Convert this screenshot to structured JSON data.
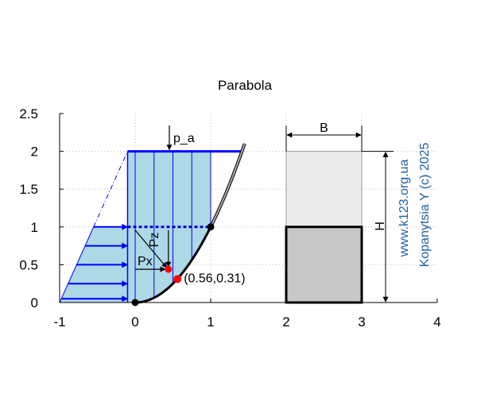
{
  "chart_data": {
    "type": "diagram",
    "title": "Parabola",
    "xlim": [
      -1,
      4
    ],
    "ylim": [
      0,
      2.5
    ],
    "xticks": [
      "-1",
      "0",
      "1",
      "2",
      "3",
      "4"
    ],
    "yticks": [
      "0",
      "0.5",
      "1",
      "1.5",
      "2",
      "2.5"
    ],
    "grid": true,
    "parabola": {
      "a": 1,
      "x_end": 1.45,
      "x_fill_end": 1
    },
    "fill_top": 2,
    "water_level": 1,
    "strip_x": [
      0,
      0.25,
      0.5,
      0.75,
      1
    ],
    "horizontal_arrows_y": [
      0.05,
      0.25,
      0.5,
      0.75,
      1
    ],
    "horizontal_load_left_x": -1,
    "point": {
      "x": 0.56,
      "y": 0.31,
      "label": "(0.56,0.31)"
    },
    "force_point": {
      "x": 0.44,
      "y": 0.44
    },
    "labels": {
      "pa": "p_a",
      "pz": "Pz",
      "px": "Px",
      "b": "B",
      "h": "H"
    },
    "section": {
      "x_left": 2,
      "x_right": 3,
      "y_bottom": 0,
      "y_mid": 1,
      "y_top": 2
    },
    "watermark": {
      "site": "www.k123.org.ua",
      "author": "Kopanytsia Y (c)  2025"
    },
    "colors": {
      "fill": "#add8e6",
      "blue": "#0000ff",
      "dashblue": "#0000cc",
      "grid": "#bbbbbb",
      "curve": "#000000",
      "curve_upper": "#aaaaaa",
      "section_upper": "#ececec",
      "section_lower": "#c8c8c8",
      "point": "#ff0000",
      "watermark": "#1f5fa8"
    }
  }
}
